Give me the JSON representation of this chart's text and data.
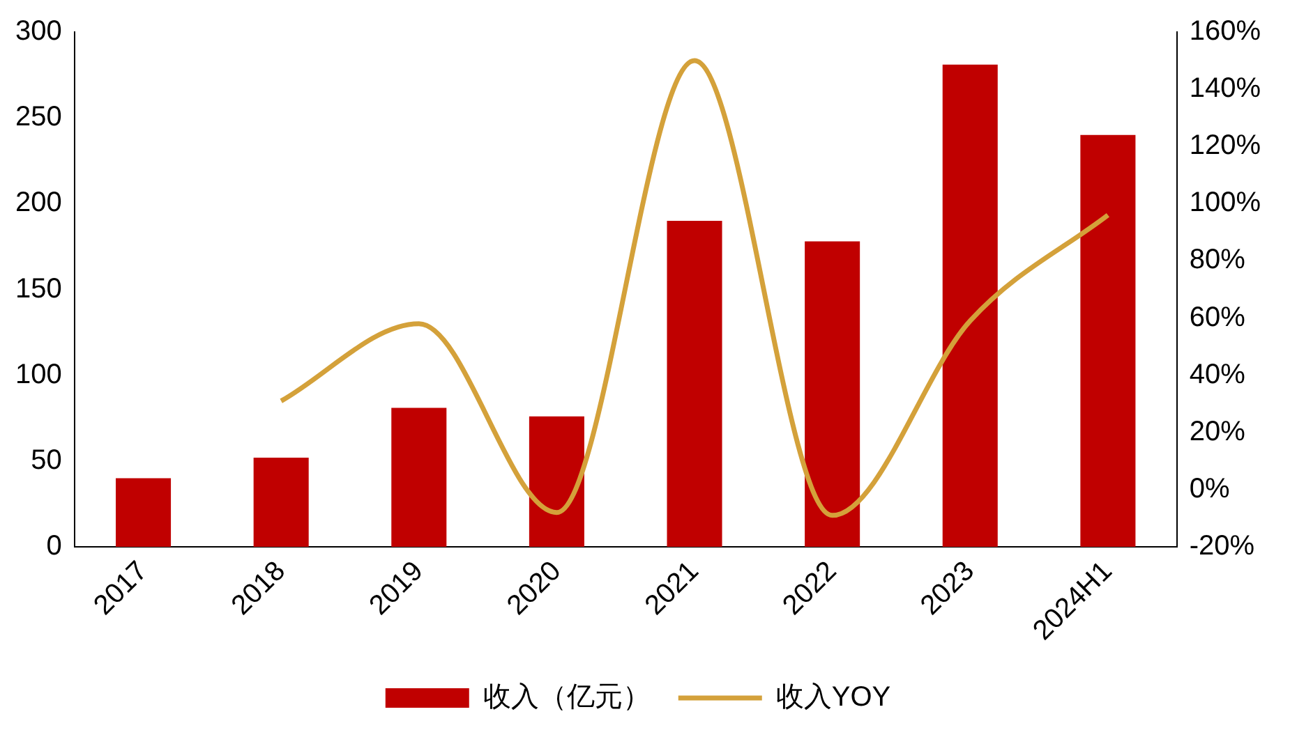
{
  "chart_data": {
    "type": "bar",
    "categories": [
      "2017",
      "2018",
      "2019",
      "2020",
      "2021",
      "2022",
      "2023",
      "2024H1"
    ],
    "series": [
      {
        "name": "收入（亿元）",
        "color": "#c00000",
        "values": [
          40,
          52,
          81,
          76,
          190,
          178,
          281,
          240
        ]
      },
      {
        "name": "收入YOY",
        "type": "line",
        "axis": "y2",
        "color": "#d4a13a",
        "values": [
          null,
          31,
          58,
          -8,
          150,
          -9,
          59,
          96
        ]
      }
    ],
    "ylim": [
      0,
      300
    ],
    "yticks": [
      0,
      50,
      100,
      150,
      200,
      250,
      300
    ],
    "y2lim": [
      -20,
      160
    ],
    "y2ticks": [
      {
        "value": -20,
        "label": "-20%"
      },
      {
        "value": 0,
        "label": "0%"
      },
      {
        "value": 20,
        "label": "20%"
      },
      {
        "value": 40,
        "label": "40%"
      },
      {
        "value": 60,
        "label": "60%"
      },
      {
        "value": 80,
        "label": "80%"
      },
      {
        "value": 100,
        "label": "100%"
      },
      {
        "value": 120,
        "label": "120%"
      },
      {
        "value": 140,
        "label": "140%"
      },
      {
        "value": 160,
        "label": "160%"
      }
    ],
    "grid": false,
    "legend": "bottom",
    "marker": "none",
    "line_style": "solid"
  }
}
